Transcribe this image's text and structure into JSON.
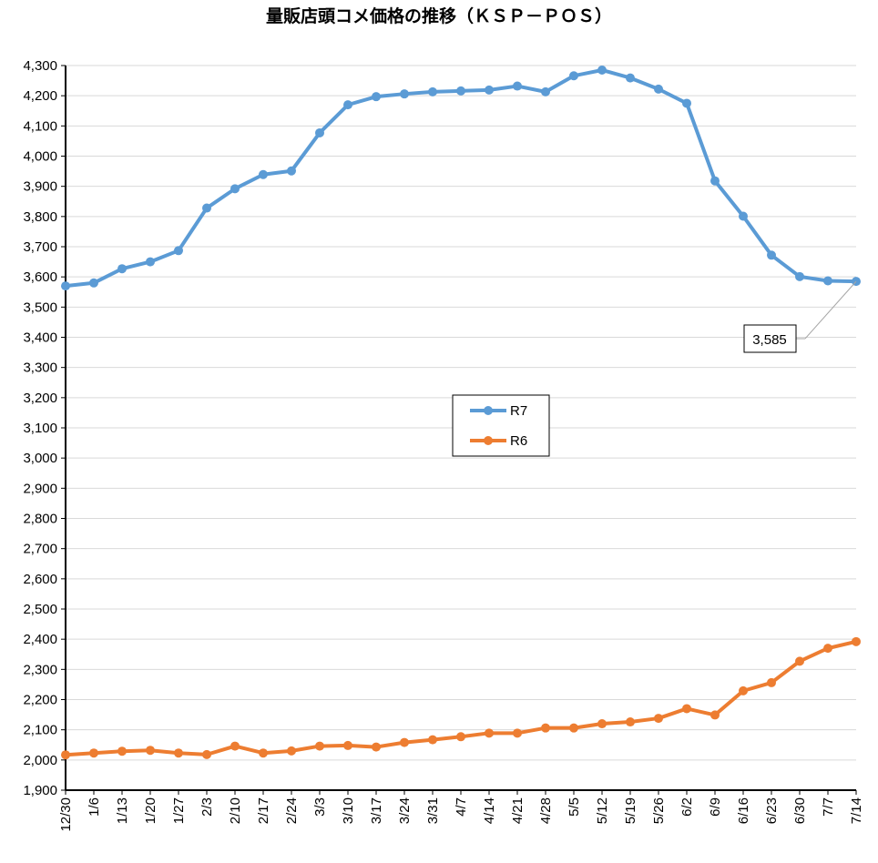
{
  "chart_data": {
    "type": "line",
    "title": "量販店頭コメ価格の推移（ＫＳＰ－ＰＯＳ）",
    "xlabel": "",
    "ylabel": "",
    "categories": [
      "12/30",
      "1/6",
      "1/13",
      "1/20",
      "1/27",
      "2/3",
      "2/10",
      "2/17",
      "2/24",
      "3/3",
      "3/10",
      "3/17",
      "3/24",
      "3/31",
      "4/7",
      "4/14",
      "4/21",
      "4/28",
      "5/5",
      "5/12",
      "5/19",
      "5/26",
      "6/2",
      "6/9",
      "6/16",
      "6/23",
      "6/30",
      "7/7",
      "7/14"
    ],
    "ylim": [
      1900,
      4300
    ],
    "ytick_step": 100,
    "yticks": [
      "1,900",
      "2,000",
      "2,100",
      "2,200",
      "2,300",
      "2,400",
      "2,500",
      "2,600",
      "2,700",
      "2,800",
      "2,900",
      "3,000",
      "3,100",
      "3,200",
      "3,300",
      "3,400",
      "3,500",
      "3,600",
      "3,700",
      "3,800",
      "3,900",
      "4,000",
      "4,100",
      "4,200",
      "4,300"
    ],
    "grid": true,
    "legend_position": "center",
    "series": [
      {
        "name": "R7",
        "color": "#5B9BD5",
        "values": [
          3570,
          3580,
          3627,
          3650,
          3687,
          3828,
          3892,
          3939,
          3951,
          4077,
          4170,
          4197,
          4206,
          4213,
          4216,
          4219,
          4232,
          4213,
          4266,
          4285,
          4259,
          4222,
          4175,
          3918,
          3801,
          3672,
          3601,
          3587,
          3585
        ]
      },
      {
        "name": "R6",
        "color": "#ED7D31",
        "values": [
          2017,
          2023,
          2029,
          2032,
          2023,
          2018,
          2046,
          2023,
          2030,
          2046,
          2048,
          2043,
          2058,
          2067,
          2077,
          2089,
          2089,
          2106,
          2106,
          2120,
          2126,
          2138,
          2170,
          2149,
          2229,
          2256,
          2327,
          2370,
          2392
        ]
      }
    ],
    "annotations": [
      {
        "text": "3,585",
        "series": "R7",
        "point_index": 28
      }
    ]
  }
}
